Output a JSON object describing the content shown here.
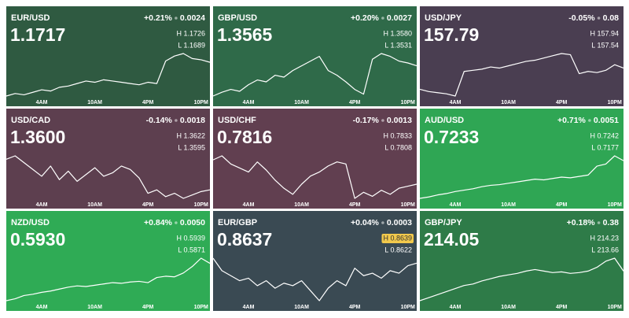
{
  "chart_data": [
    {
      "type": "line",
      "title": "EUR/USD",
      "price": "1.1717",
      "change_pct": "+0.21%",
      "change": "0.0024",
      "high": "H 1.1726",
      "low": "L 1.1689",
      "color": "#2f5a41",
      "x": [
        0,
        1,
        2,
        3,
        4,
        5,
        6,
        7,
        8,
        9,
        10,
        11,
        12,
        13,
        14,
        15,
        16,
        17,
        18,
        19,
        20,
        21,
        22,
        23
      ],
      "xlim": [
        0,
        23
      ],
      "xticks": [
        {
          "value": 4,
          "label": "4AM"
        },
        {
          "value": 10,
          "label": "10AM"
        },
        {
          "value": 16,
          "label": "4PM"
        },
        {
          "value": 22,
          "label": "10PM"
        }
      ],
      "values": [
        1.169,
        1.1692,
        1.1691,
        1.1693,
        1.1695,
        1.1694,
        1.1697,
        1.1698,
        1.17,
        1.1702,
        1.1701,
        1.1703,
        1.1702,
        1.1701,
        1.17,
        1.1699,
        1.1701,
        1.17,
        1.1718,
        1.1722,
        1.1724,
        1.172,
        1.1719,
        1.1717
      ]
    },
    {
      "type": "line",
      "title": "GBP/USD",
      "price": "1.3565",
      "change_pct": "+0.20%",
      "change": "0.0027",
      "high": "H 1.3580",
      "low": "L 1.3531",
      "color": "#2f6a49",
      "x": [
        0,
        1,
        2,
        3,
        4,
        5,
        6,
        7,
        8,
        9,
        10,
        11,
        12,
        13,
        14,
        15,
        16,
        17,
        18,
        19,
        20,
        21,
        22,
        23
      ],
      "xlim": [
        0,
        23
      ],
      "xticks": [
        {
          "value": 4,
          "label": "4AM"
        },
        {
          "value": 10,
          "label": "10AM"
        },
        {
          "value": 16,
          "label": "4PM"
        },
        {
          "value": 22,
          "label": "10PM"
        }
      ],
      "values": [
        1.3533,
        1.3537,
        1.354,
        1.3538,
        1.3545,
        1.355,
        1.3548,
        1.3555,
        1.3553,
        1.356,
        1.3565,
        1.357,
        1.3575,
        1.356,
        1.3555,
        1.3548,
        1.354,
        1.3535,
        1.3572,
        1.3578,
        1.3575,
        1.357,
        1.3568,
        1.3565
      ]
    },
    {
      "type": "line",
      "title": "USD/JPY",
      "price": "157.79",
      "change_pct": "-0.05%",
      "change": "0.08",
      "high": "H 157.94",
      "low": "L 157.54",
      "color": "#4a3e51",
      "x": [
        0,
        1,
        2,
        3,
        4,
        5,
        6,
        7,
        8,
        9,
        10,
        11,
        12,
        13,
        14,
        15,
        16,
        17,
        18,
        19,
        20,
        21,
        22,
        23
      ],
      "xlim": [
        0,
        23
      ],
      "xticks": [
        {
          "value": 4,
          "label": "4AM"
        },
        {
          "value": 10,
          "label": "10AM"
        },
        {
          "value": 16,
          "label": "4PM"
        },
        {
          "value": 22,
          "label": "10PM"
        }
      ],
      "values": [
        157.6,
        157.58,
        157.57,
        157.56,
        157.54,
        157.76,
        157.77,
        157.78,
        157.8,
        157.79,
        157.81,
        157.83,
        157.85,
        157.86,
        157.88,
        157.9,
        157.92,
        157.91,
        157.74,
        157.76,
        157.75,
        157.77,
        157.82,
        157.79
      ]
    },
    {
      "type": "line",
      "title": "USD/CAD",
      "price": "1.3600",
      "change_pct": "-0.14%",
      "change": "0.0018",
      "high": "H 1.3622",
      "low": "L 1.3595",
      "color": "#5d3f4f",
      "x": [
        0,
        1,
        2,
        3,
        4,
        5,
        6,
        7,
        8,
        9,
        10,
        11,
        12,
        13,
        14,
        15,
        16,
        17,
        18,
        19,
        20,
        21,
        22,
        23
      ],
      "xlim": [
        0,
        23
      ],
      "xticks": [
        {
          "value": 4,
          "label": "4AM"
        },
        {
          "value": 10,
          "label": "10AM"
        },
        {
          "value": 16,
          "label": "4PM"
        },
        {
          "value": 22,
          "label": "10PM"
        }
      ],
      "values": [
        1.3618,
        1.362,
        1.3616,
        1.3612,
        1.3608,
        1.3614,
        1.3606,
        1.3611,
        1.3605,
        1.3609,
        1.3613,
        1.3608,
        1.361,
        1.3614,
        1.3612,
        1.3607,
        1.3598,
        1.36,
        1.3596,
        1.3598,
        1.3595,
        1.3597,
        1.3599,
        1.36
      ]
    },
    {
      "type": "line",
      "title": "USD/CHF",
      "price": "0.7816",
      "change_pct": "-0.17%",
      "change": "0.0013",
      "high": "H 0.7833",
      "low": "L 0.7808",
      "color": "#613f50",
      "x": [
        0,
        1,
        2,
        3,
        4,
        5,
        6,
        7,
        8,
        9,
        10,
        11,
        12,
        13,
        14,
        15,
        16,
        17,
        18,
        19,
        20,
        21,
        22,
        23
      ],
      "xlim": [
        0,
        23
      ],
      "xticks": [
        {
          "value": 4,
          "label": "4AM"
        },
        {
          "value": 10,
          "label": "10AM"
        },
        {
          "value": 16,
          "label": "4PM"
        },
        {
          "value": 22,
          "label": "10PM"
        }
      ],
      "values": [
        0.7828,
        0.783,
        0.7826,
        0.7824,
        0.7822,
        0.7827,
        0.7823,
        0.7818,
        0.7814,
        0.7811,
        0.7816,
        0.782,
        0.7822,
        0.7825,
        0.7827,
        0.7826,
        0.7809,
        0.7812,
        0.781,
        0.7813,
        0.7811,
        0.7814,
        0.7815,
        0.7816
      ]
    },
    {
      "type": "line",
      "title": "AUD/USD",
      "price": "0.7233",
      "change_pct": "+0.71%",
      "change": "0.0051",
      "high": "H 0.7242",
      "low": "L 0.7177",
      "color": "#2fa654",
      "x": [
        0,
        1,
        2,
        3,
        4,
        5,
        6,
        7,
        8,
        9,
        10,
        11,
        12,
        13,
        14,
        15,
        16,
        17,
        18,
        19,
        20,
        21,
        22,
        23
      ],
      "xlim": [
        0,
        23
      ],
      "xticks": [
        {
          "value": 4,
          "label": "4AM"
        },
        {
          "value": 10,
          "label": "10AM"
        },
        {
          "value": 16,
          "label": "4PM"
        },
        {
          "value": 22,
          "label": "10PM"
        }
      ],
      "values": [
        0.7178,
        0.718,
        0.7183,
        0.7185,
        0.7188,
        0.719,
        0.7192,
        0.7195,
        0.7197,
        0.7198,
        0.72,
        0.7202,
        0.7204,
        0.7206,
        0.7205,
        0.7207,
        0.7209,
        0.7208,
        0.721,
        0.7212,
        0.7225,
        0.7228,
        0.724,
        0.7233
      ]
    },
    {
      "type": "line",
      "title": "NZD/USD",
      "price": "0.5930",
      "change_pct": "+0.84%",
      "change": "0.0050",
      "high": "H 0.5939",
      "low": "L 0.5871",
      "color": "#2fab55",
      "x": [
        0,
        1,
        2,
        3,
        4,
        5,
        6,
        7,
        8,
        9,
        10,
        11,
        12,
        13,
        14,
        15,
        16,
        17,
        18,
        19,
        20,
        21,
        22,
        23
      ],
      "xlim": [
        0,
        23
      ],
      "xticks": [
        {
          "value": 4,
          "label": "4AM"
        },
        {
          "value": 10,
          "label": "10AM"
        },
        {
          "value": 16,
          "label": "4PM"
        },
        {
          "value": 22,
          "label": "10PM"
        }
      ],
      "values": [
        0.5872,
        0.5875,
        0.588,
        0.5882,
        0.5885,
        0.5887,
        0.589,
        0.5893,
        0.5895,
        0.5894,
        0.5896,
        0.5898,
        0.59,
        0.5899,
        0.5901,
        0.5902,
        0.59,
        0.5908,
        0.591,
        0.5909,
        0.5915,
        0.5925,
        0.5938,
        0.593
      ]
    },
    {
      "type": "line",
      "title": "EUR/GBP",
      "price": "0.8637",
      "change_pct": "+0.04%",
      "change": "0.0003",
      "high": "H 0.8639",
      "low": "L 0.8622",
      "color": "#3a4a53",
      "highlight": "high",
      "x": [
        0,
        1,
        2,
        3,
        4,
        5,
        6,
        7,
        8,
        9,
        10,
        11,
        12,
        13,
        14,
        15,
        16,
        17,
        18,
        19,
        20,
        21,
        22,
        23
      ],
      "xlim": [
        0,
        23
      ],
      "xticks": [
        {
          "value": 4,
          "label": "4AM"
        },
        {
          "value": 10,
          "label": "10AM"
        },
        {
          "value": 16,
          "label": "4PM"
        },
        {
          "value": 22,
          "label": "10PM"
        }
      ],
      "values": [
        0.8639,
        0.8634,
        0.8632,
        0.863,
        0.8631,
        0.8628,
        0.863,
        0.8627,
        0.8629,
        0.8628,
        0.863,
        0.8626,
        0.8622,
        0.8627,
        0.863,
        0.8628,
        0.8635,
        0.8632,
        0.8633,
        0.8631,
        0.8634,
        0.8633,
        0.8636,
        0.8637
      ]
    },
    {
      "type": "line",
      "title": "GBP/JPY",
      "price": "214.05",
      "change_pct": "+0.18%",
      "change": "0.38",
      "high": "H 214.23",
      "low": "L 213.66",
      "color": "#2e7b48",
      "x": [
        0,
        1,
        2,
        3,
        4,
        5,
        6,
        7,
        8,
        9,
        10,
        11,
        12,
        13,
        14,
        15,
        16,
        17,
        18,
        19,
        20,
        21,
        22,
        23
      ],
      "xlim": [
        0,
        23
      ],
      "xticks": [
        {
          "value": 4,
          "label": "4AM"
        },
        {
          "value": 10,
          "label": "10AM"
        },
        {
          "value": 16,
          "label": "4PM"
        },
        {
          "value": 22,
          "label": "10PM"
        }
      ],
      "values": [
        213.66,
        213.7,
        213.74,
        213.78,
        213.82,
        213.86,
        213.88,
        213.92,
        213.95,
        213.98,
        214.0,
        214.02,
        214.05,
        214.07,
        214.05,
        214.03,
        214.04,
        214.02,
        214.03,
        214.05,
        214.1,
        214.18,
        214.22,
        214.05
      ]
    }
  ]
}
